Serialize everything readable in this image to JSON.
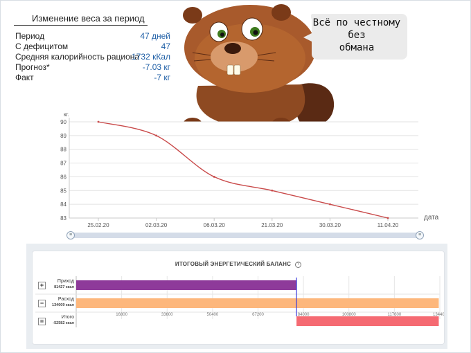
{
  "stats": {
    "title": "Изменение веса за период",
    "rows": [
      {
        "label": "Период",
        "value": "47 дней"
      },
      {
        "label": "С дефицитом",
        "value": "47"
      },
      {
        "label": "Средняя калорийность рациона",
        "value": "1732 кКал"
      },
      {
        "label": "Прогноз*",
        "value": "-7.03 кг"
      },
      {
        "label": "Факт",
        "value": "-7 кг"
      }
    ]
  },
  "bubble": {
    "line1": "Всё по честному",
    "line2": "без",
    "line3": "обмана"
  },
  "chart_data": [
    {
      "type": "line",
      "x": [
        "25.02.20",
        "02.03.20",
        "06.03.20",
        "21.03.20",
        "30.03.20",
        "11.04.20"
      ],
      "y": [
        90,
        89,
        86,
        85,
        84,
        83
      ],
      "ylabel": "кг.",
      "xlabel": "дата",
      "yticks": [
        "90",
        "89",
        "88",
        "87",
        "86",
        "85",
        "84",
        "83"
      ],
      "ylim": [
        83,
        90
      ],
      "grid": true,
      "color": "#c94a4a"
    },
    {
      "type": "bar",
      "orientation": "horizontal",
      "title": "ИТОГОВЫЙ ЭНЕРГЕТИЧЕСКИЙ БАЛАНС",
      "categories": [
        {
          "label": "Приход",
          "sub": "81427 ккал",
          "sign": "+",
          "value": 81427,
          "color": "#8e3a9a"
        },
        {
          "label": "Расход",
          "sub": "134009 ккал",
          "sign": "−",
          "value": 134009,
          "color": "#fdb77c"
        },
        {
          "label": "Итого",
          "sub": "-52582 ккал",
          "sign": "=",
          "value": -52582,
          "color": "#f56a72"
        }
      ],
      "xticks": [
        "16800",
        "33600",
        "50400",
        "67200",
        "84000",
        "100800",
        "117600",
        "134400"
      ],
      "xtick_values": [
        16800,
        33600,
        50400,
        67200,
        84000,
        100800,
        117600,
        134400
      ],
      "xlim": [
        0,
        134400
      ],
      "marker_value": 81427,
      "marker_color": "#3b3bdc"
    }
  ]
}
